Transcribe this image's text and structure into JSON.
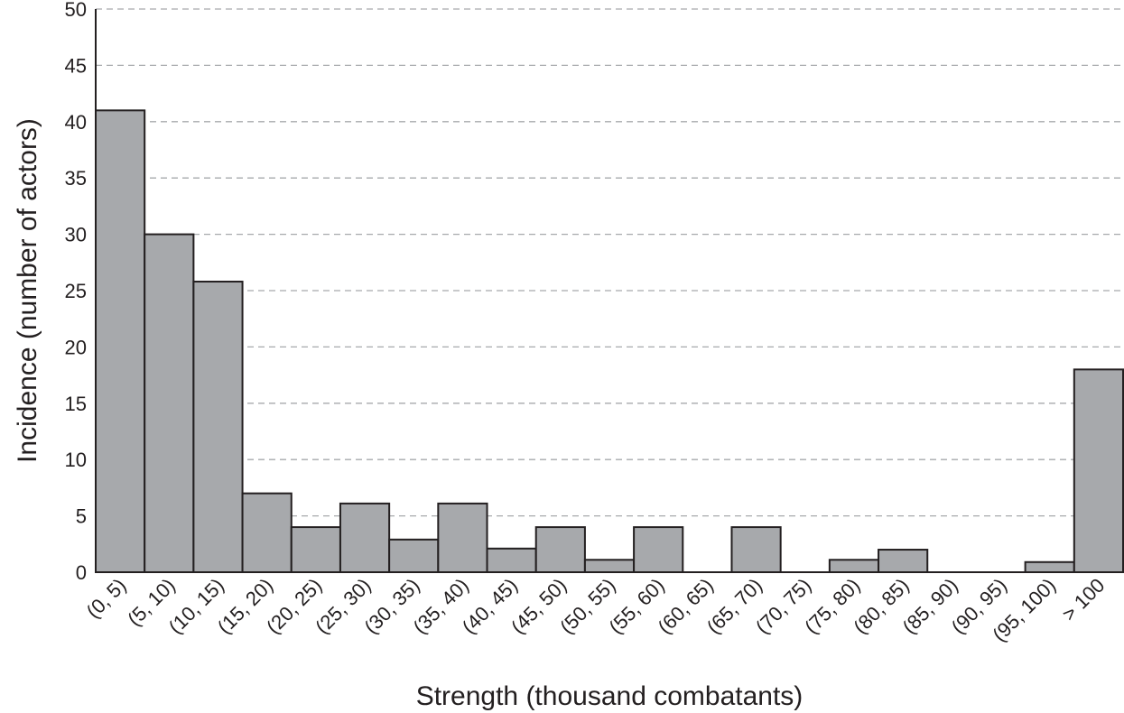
{
  "chart_data": {
    "type": "bar",
    "title": "",
    "xlabel": "Strength (thousand combatants)",
    "ylabel": "Incidence (number of actors)",
    "categories": [
      "(0, 5)",
      "(5, 10)",
      "(10, 15)",
      "(15, 20)",
      "(20, 25)",
      "(25, 30)",
      "(30, 35)",
      "(35, 40)",
      "(40, 45)",
      "(45, 50)",
      "(50, 55)",
      "(55, 60)",
      "(60, 65)",
      "(65, 70)",
      "(70, 75)",
      "(75, 80)",
      "(80, 85)",
      "(85, 90)",
      "(90, 95)",
      "(95, 100)",
      "> 100"
    ],
    "values": [
      41,
      30,
      25.8,
      7,
      4,
      6.1,
      2.9,
      6.1,
      2.1,
      4,
      1.1,
      4,
      0,
      4,
      0,
      1.1,
      2,
      0,
      0,
      0.9,
      18
    ],
    "ylim": [
      0,
      50
    ],
    "yticks": [
      0,
      5,
      10,
      15,
      20,
      25,
      30,
      35,
      40,
      45,
      50
    ],
    "grid": true,
    "colors": {
      "bar_fill": "#a7a9ac",
      "bar_stroke": "#231f20",
      "grid": "#a7a9ac",
      "text": "#231f20"
    }
  }
}
